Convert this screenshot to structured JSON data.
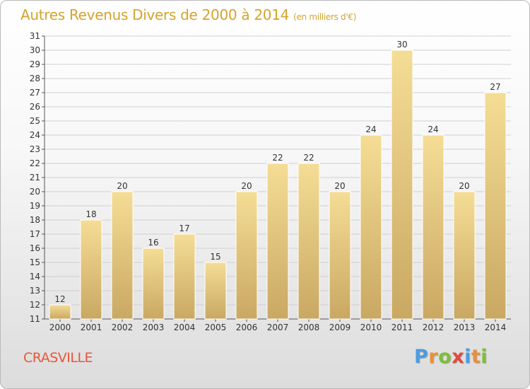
{
  "header": {
    "title": "Autres Revenus Divers de 2000 à 2014",
    "subtitle": "(en milliers d'€)"
  },
  "footer": {
    "town": "CRASVILLE",
    "logo_letters": [
      "P",
      "r",
      "o",
      "x",
      "i",
      "t",
      "i"
    ],
    "logo_colors": [
      "#4e9be0",
      "#e8913a",
      "#7cbf3b",
      "#e04a3c",
      "#4e9be0",
      "#e8913a",
      "#7cbf3b"
    ]
  },
  "colors": {
    "title": "#d4a42c",
    "town": "#e8563a",
    "bar_top": "#f5dd96",
    "bar_bottom": "#c9a862",
    "bar_border": "#ffffff"
  },
  "chart_data": {
    "type": "bar",
    "title": "Autres Revenus Divers de 2000 à 2014",
    "subtitle": "(en milliers d'€)",
    "categories": [
      "2000",
      "2001",
      "2002",
      "2003",
      "2004",
      "2005",
      "2006",
      "2007",
      "2008",
      "2009",
      "2010",
      "2011",
      "2012",
      "2013",
      "2014"
    ],
    "values": [
      12,
      18,
      20,
      16,
      17,
      15,
      20,
      22,
      22,
      20,
      24,
      30,
      24,
      20,
      27
    ],
    "ylim": [
      11,
      31
    ],
    "yticks": [
      11,
      12,
      13,
      14,
      15,
      16,
      17,
      18,
      19,
      20,
      21,
      22,
      23,
      24,
      25,
      26,
      27,
      28,
      29,
      30,
      31
    ],
    "grid": true,
    "legend": "none"
  }
}
